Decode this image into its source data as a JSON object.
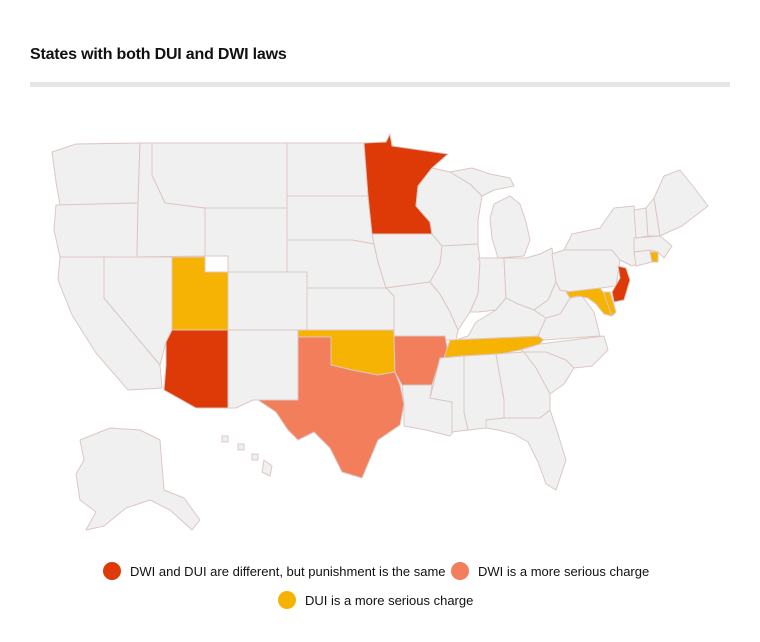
{
  "title": "States with both DUI and DWI laws",
  "colors": {
    "default": "#f1f0f0",
    "border": "#dcc7c2",
    "same_punishment": "#dd3a07",
    "dwi_more_serious": "#f27e5c",
    "dui_more_serious": "#f7b303"
  },
  "legend": [
    {
      "label": "DWI and DUI are different, but punishment is the same",
      "color": "#dd3a07"
    },
    {
      "label": "DWI is a more serious charge",
      "color": "#f27e5c"
    },
    {
      "label": "DUI is a more serious charge",
      "color": "#f7b303"
    }
  ],
  "categories": {
    "same_punishment": [
      "Minnesota",
      "Arizona",
      "New Jersey"
    ],
    "dwi_more_serious": [
      "Texas",
      "Arkansas"
    ],
    "dui_more_serious": [
      "Utah",
      "Oklahoma",
      "Tennessee",
      "Maryland",
      "Rhode Island"
    ]
  }
}
